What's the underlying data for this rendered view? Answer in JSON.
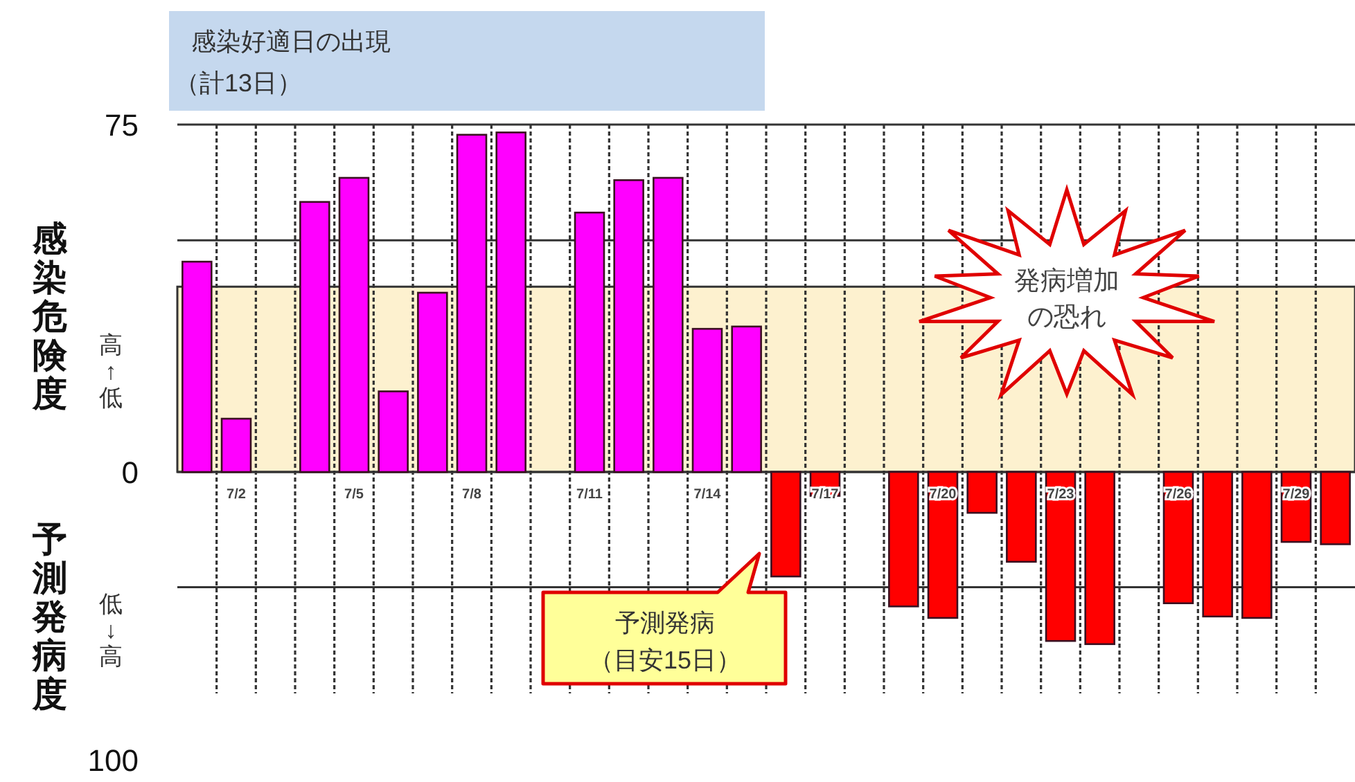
{
  "chart_data": {
    "type": "bar",
    "title": "感染好適日の出現",
    "subtitle": "（計13日）",
    "ylabel": "感染危険度",
    "y2label": "予測発病度",
    "categories": [
      null,
      "7/2",
      null,
      null,
      "7/5",
      null,
      null,
      "7/8",
      null,
      null,
      "7/11",
      null,
      null,
      "7/14",
      null,
      null,
      "7/17",
      null,
      null,
      "7/20",
      null,
      null,
      "7/23",
      null,
      null,
      "7/26",
      null,
      null,
      "7/29",
      null
    ],
    "series": [
      {
        "color": "#ff00ff",
        "values": [
          45.4,
          11.5,
          null,
          58.3,
          63.5,
          17.4,
          38.7,
          72.8,
          73.3,
          null,
          56.0,
          63.0,
          63.5,
          30.9,
          31.4,
          null,
          null,
          null,
          null,
          null,
          null,
          null,
          null,
          null,
          null,
          null,
          null,
          null,
          null,
          null
        ]
      },
      {
        "color": "#ff0000",
        "axis": "y2",
        "values": [
          null,
          null,
          null,
          null,
          null,
          null,
          null,
          null,
          null,
          null,
          null,
          null,
          null,
          null,
          null,
          36.3,
          8.3,
          null,
          46.7,
          50.7,
          14.2,
          31.2,
          58.7,
          59.8,
          null,
          45.6,
          50.2,
          50.7,
          24.3,
          25.1
        ]
      }
    ],
    "ylim": [
      0,
      75
    ],
    "yticks": [
      75
    ],
    "y2lim": [
      100,
      0
    ],
    "y2ticks": [
      0,
      100
    ],
    "grid": "x",
    "bands": [
      {
        "axis": "y",
        "from": 0,
        "to": 40,
        "color": "#fdf1cf"
      }
    ],
    "ref_lines": [
      {
        "axis": "y",
        "value": 75
      },
      {
        "axis": "y",
        "value": 50
      },
      {
        "axis": "y2",
        "value": 40
      }
    ],
    "annotations": [
      "高↑低",
      "低↓高",
      "発病増加の恐れ",
      "予測発病（目安15日）"
    ]
  }
}
